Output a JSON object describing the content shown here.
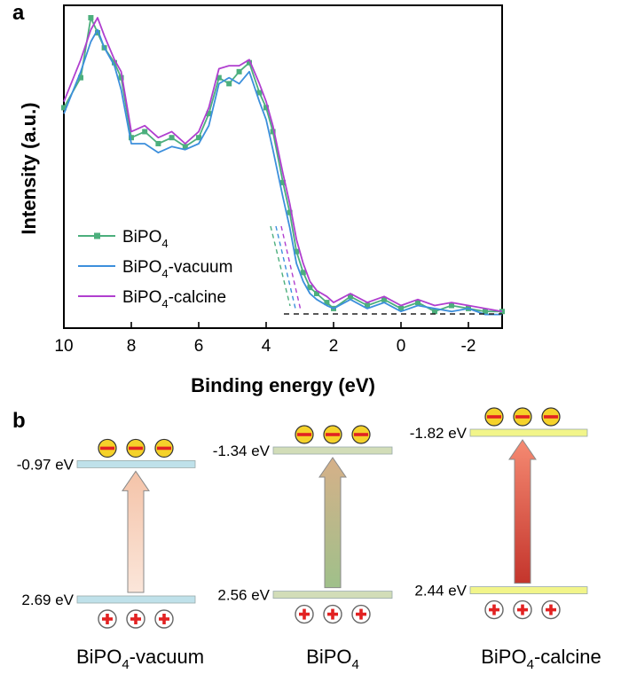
{
  "panel_a_label": "a",
  "panel_b_label": "b",
  "chart_data": {
    "type": "line",
    "xlabel": "Binding energy (eV)",
    "ylabel": "Intensity (a.u.)",
    "xlim": [
      10,
      -3
    ],
    "x_reversed": true,
    "x_ticks": [
      10,
      8,
      6,
      4,
      2,
      0,
      -2
    ],
    "ylim": [
      0,
      100
    ],
    "y_ticks_shown": false,
    "grid": false,
    "legend_position": "bottom-left",
    "series": [
      {
        "name": "BiPO₄",
        "label_base": "BiPO",
        "label_sub": "4",
        "label_suffix": "",
        "color": "#4caf7d",
        "marker": "square",
        "x": [
          10.0,
          9.5,
          9.2,
          9.0,
          8.8,
          8.5,
          8.3,
          8.0,
          7.6,
          7.2,
          6.8,
          6.4,
          6.0,
          5.7,
          5.4,
          5.1,
          4.8,
          4.5,
          4.2,
          4.0,
          3.8,
          3.5,
          3.3,
          3.1,
          2.9,
          2.7,
          2.5,
          2.2,
          2.0,
          1.5,
          1.0,
          0.5,
          0.0,
          -0.5,
          -1.0,
          -1.5,
          -2.0,
          -2.5,
          -3.0
        ],
        "y": [
          70,
          80,
          100,
          95,
          90,
          85,
          80,
          60,
          62,
          58,
          60,
          57,
          60,
          68,
          80,
          78,
          82,
          85,
          75,
          70,
          62,
          45,
          35,
          22,
          15,
          10,
          8,
          5,
          3,
          7,
          4,
          6,
          3,
          5,
          2,
          4,
          3,
          2,
          2
        ]
      },
      {
        "name": "BiPO₄-vacuum",
        "label_base": "BiPO",
        "label_sub": "4",
        "label_suffix": "-vacuum",
        "color": "#3c8fdc",
        "marker": "none",
        "x": [
          10.0,
          9.5,
          9.2,
          9.0,
          8.8,
          8.5,
          8.3,
          8.0,
          7.6,
          7.2,
          6.8,
          6.4,
          6.0,
          5.7,
          5.4,
          5.1,
          4.8,
          4.5,
          4.2,
          4.0,
          3.8,
          3.5,
          3.3,
          3.1,
          2.9,
          2.7,
          2.5,
          2.2,
          2.0,
          1.5,
          1.0,
          0.5,
          0.0,
          -0.5,
          -1.0,
          -1.5,
          -2.0,
          -2.5,
          -3.0
        ],
        "y": [
          68,
          82,
          92,
          96,
          90,
          84,
          76,
          58,
          58,
          55,
          57,
          56,
          58,
          64,
          78,
          80,
          78,
          82,
          72,
          66,
          56,
          40,
          30,
          18,
          12,
          8,
          6,
          4,
          3,
          6,
          3,
          5,
          2,
          4,
          3,
          2,
          3,
          1,
          1
        ]
      },
      {
        "name": "BiPO₄-calcine",
        "label_base": "BiPO",
        "label_sub": "4",
        "label_suffix": "-calcine",
        "color": "#b03fcf",
        "marker": "none",
        "x": [
          10.0,
          9.5,
          9.2,
          9.0,
          8.8,
          8.5,
          8.3,
          8.0,
          7.6,
          7.2,
          6.8,
          6.4,
          6.0,
          5.7,
          5.4,
          5.1,
          4.8,
          4.5,
          4.2,
          4.0,
          3.8,
          3.5,
          3.3,
          3.1,
          2.9,
          2.7,
          2.5,
          2.2,
          2.0,
          1.5,
          1.0,
          0.5,
          0.0,
          -0.5,
          -1.0,
          -1.5,
          -2.0,
          -2.5,
          -3.0
        ],
        "y": [
          72,
          86,
          96,
          100,
          94,
          86,
          82,
          62,
          64,
          60,
          62,
          58,
          62,
          70,
          83,
          84,
          84,
          86,
          78,
          72,
          64,
          48,
          38,
          26,
          18,
          12,
          9,
          7,
          5,
          8,
          5,
          7,
          4,
          6,
          4,
          5,
          4,
          3,
          2
        ]
      }
    ]
  },
  "band_diagram": {
    "columns": [
      {
        "name_base": "BiPO",
        "name_sub": "4",
        "name_suffix": "-vacuum",
        "cb_label": "-0.97 eV",
        "vb_label": "2.69 eV",
        "cb_value": -0.97,
        "vb_value": 2.69,
        "cb_fill": "#bfe1ea",
        "vb_fill": "#bfe1ea",
        "arrow_color": "#f4c3a8"
      },
      {
        "name_base": "BiPO",
        "name_sub": "4",
        "name_suffix": "",
        "cb_label": "-1.34 eV",
        "vb_label": "2.56 eV",
        "cb_value": -1.34,
        "vb_value": 2.56,
        "cb_fill": "#d2ddb8",
        "vb_fill": "#d2ddb8",
        "arrow_color": "#b5bf6a"
      },
      {
        "name_base": "BiPO",
        "name_sub": "4",
        "name_suffix": "-calcine",
        "cb_label": "-1.82 eV",
        "vb_label": "2.44 eV",
        "cb_value": -1.82,
        "vb_value": 2.44,
        "cb_fill": "#f2f58a",
        "vb_fill": "#f2f58a",
        "arrow_color": "#ee4b3c"
      }
    ],
    "electron_color": "#f5d22a",
    "hole_color": "#e22222"
  }
}
